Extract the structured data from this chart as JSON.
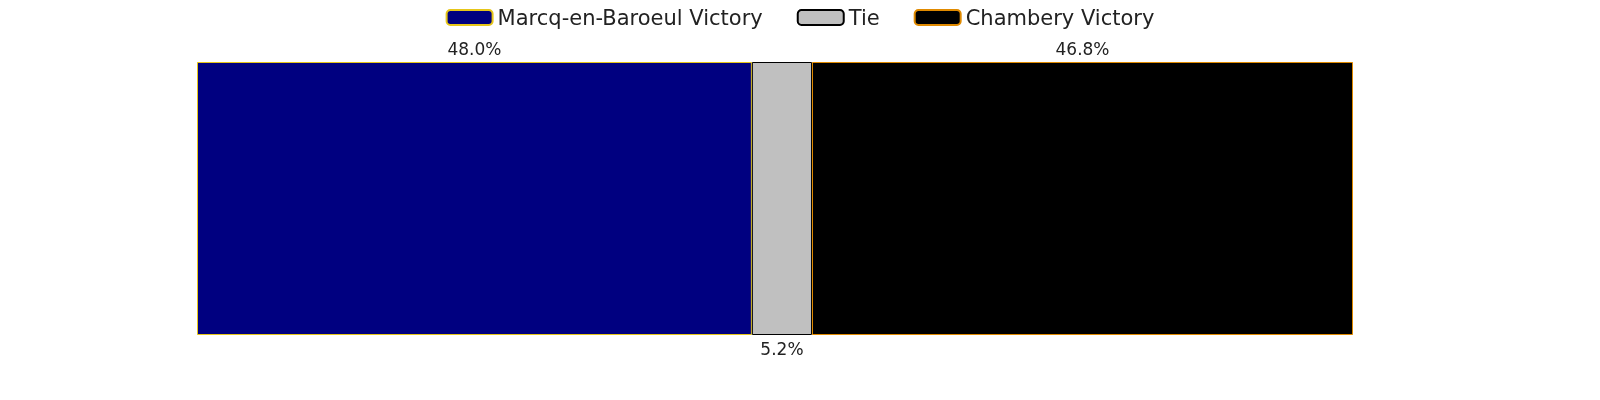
{
  "chart_data": {
    "type": "bar",
    "orientation": "horizontal",
    "stacked": true,
    "categories": [
      null
    ],
    "legend": "top",
    "series": [
      {
        "name": "Marcq-en-Baroeul Victory",
        "color": "#000080",
        "values": [
          48.0
        ],
        "value_labels": [
          "48.0%"
        ]
      },
      {
        "name": "Tie",
        "color": "#c0c0c0",
        "values": [
          5.2
        ],
        "value_labels": [
          "5.2%"
        ]
      },
      {
        "name": "Chambery Victory",
        "color": "#000000",
        "values": [
          46.8
        ],
        "value_labels": [
          "46.8%"
        ]
      }
    ]
  }
}
